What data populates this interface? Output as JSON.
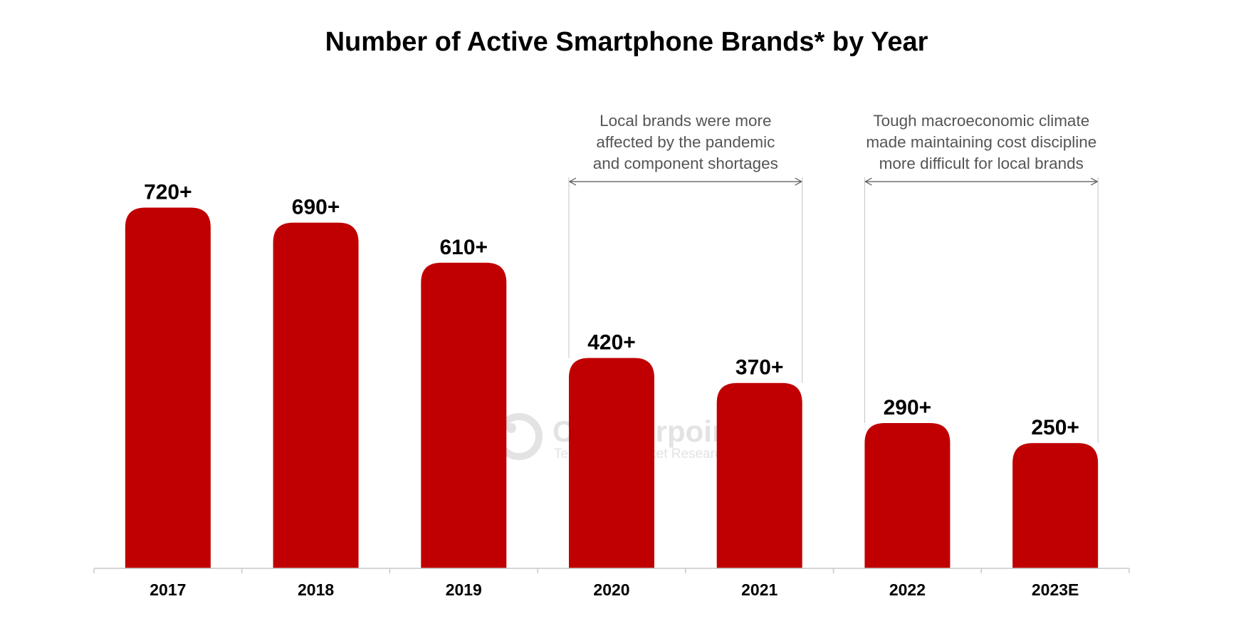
{
  "chart_data": {
    "type": "bar",
    "title": "Number of Active Smartphone Brands* by Year",
    "xlabel": "",
    "ylabel": "",
    "ylim": [
      0,
      810
    ],
    "grid": false,
    "categories": [
      "2017",
      "2018",
      "2019",
      "2020",
      "2021",
      "2022",
      "2023E"
    ],
    "values": [
      720,
      690,
      610,
      420,
      370,
      290,
      250
    ],
    "value_labels": [
      "720+",
      "690+",
      "610+",
      "420+",
      "370+",
      "290+",
      "250+"
    ],
    "bar_color": "#c00000",
    "annotations": [
      {
        "lines": [
          "Local brands were more",
          "affected by the pandemic",
          "and component shortages"
        ],
        "from_category": "2020",
        "to_category": "2021"
      },
      {
        "lines": [
          "Tough macroeconomic climate",
          "made maintaining cost discipline",
          "more difficult for local brands"
        ],
        "from_category": "2022",
        "to_category": "2023E"
      }
    ],
    "watermark": {
      "name": "Counterpoint",
      "tagline": "Technology Market Research"
    }
  }
}
